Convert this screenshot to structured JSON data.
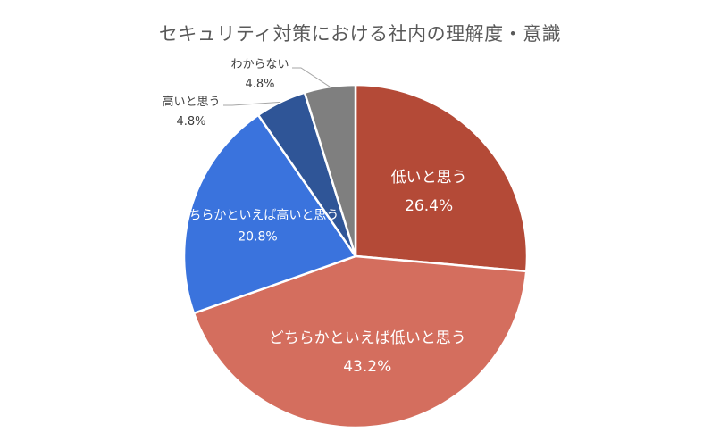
{
  "chart_data": {
    "type": "pie",
    "title": "セキュリティ対策における社内の理解度・意識",
    "slices": [
      {
        "label": "低いと思う",
        "value": 26.4,
        "value_label": "26.4%",
        "color": "#B44A37"
      },
      {
        "label": "どちらかといえば低いと思う",
        "value": 43.2,
        "value_label": "43.2%",
        "color": "#D46E5E"
      },
      {
        "label": "どちらかといえば高いと思う",
        "value": 20.8,
        "value_label": "20.8%",
        "color": "#3A73DD"
      },
      {
        "label": "高いと思う",
        "value": 4.8,
        "value_label": "4.8%",
        "color": "#2F5597"
      },
      {
        "label": "わからない",
        "value": 4.8,
        "value_label": "4.8%",
        "color": "#7F7F7F"
      }
    ],
    "start": "12 o'clock",
    "direction": "clockwise",
    "legend": "none"
  }
}
